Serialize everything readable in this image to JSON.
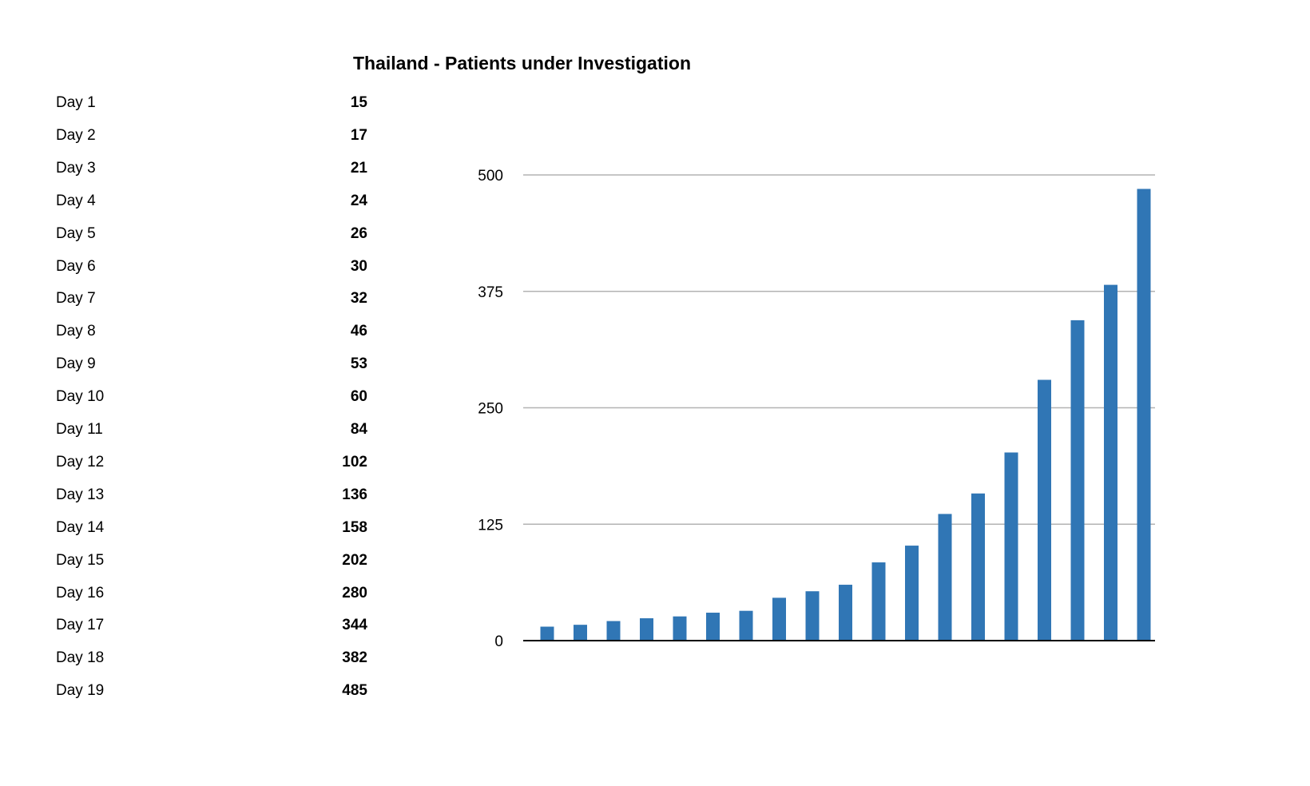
{
  "title": "Thailand - Patients under Investigation",
  "table": {
    "rows": [
      {
        "label": "Day 1",
        "value": "15"
      },
      {
        "label": "Day 2",
        "value": "17"
      },
      {
        "label": "Day 3",
        "value": "21"
      },
      {
        "label": "Day 4",
        "value": "24"
      },
      {
        "label": "Day 5",
        "value": "26"
      },
      {
        "label": "Day 6",
        "value": "30"
      },
      {
        "label": "Day 7",
        "value": "32"
      },
      {
        "label": "Day 8",
        "value": "46"
      },
      {
        "label": "Day 9",
        "value": "53"
      },
      {
        "label": "Day 10",
        "value": "60"
      },
      {
        "label": "Day 11",
        "value": "84"
      },
      {
        "label": "Day 12",
        "value": "102"
      },
      {
        "label": "Day 13",
        "value": "136"
      },
      {
        "label": "Day 14",
        "value": "158"
      },
      {
        "label": "Day 15",
        "value": "202"
      },
      {
        "label": "Day 16",
        "value": "280"
      },
      {
        "label": "Day 17",
        "value": "344"
      },
      {
        "label": "Day 18",
        "value": "382"
      },
      {
        "label": "Day 19",
        "value": "485"
      }
    ]
  },
  "chart_data": {
    "type": "bar",
    "title": "Thailand - Patients under Investigation",
    "categories": [
      "Day 1",
      "Day 2",
      "Day 3",
      "Day 4",
      "Day 5",
      "Day 6",
      "Day 7",
      "Day 8",
      "Day 9",
      "Day 10",
      "Day 11",
      "Day 12",
      "Day 13",
      "Day 14",
      "Day 15",
      "Day 16",
      "Day 17",
      "Day 18",
      "Day 19"
    ],
    "values": [
      15,
      17,
      21,
      24,
      26,
      30,
      32,
      46,
      53,
      60,
      84,
      102,
      136,
      158,
      202,
      280,
      344,
      382,
      485
    ],
    "xlabel": "",
    "ylabel": "",
    "ylim": [
      0,
      500
    ],
    "yticks": [
      "0",
      "125",
      "250",
      "375",
      "500"
    ],
    "grid": true,
    "legend": "none",
    "bar_color": "#3076b5",
    "grid_color": "#b3b3b3",
    "axis_color": "#000000"
  }
}
